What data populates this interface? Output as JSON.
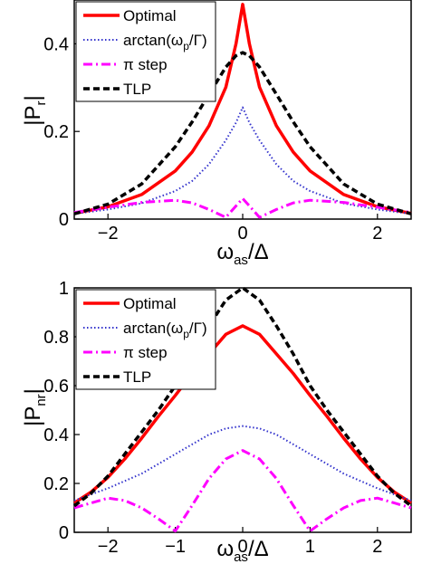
{
  "legend_labels": {
    "optimal": "Optimal",
    "arctan": "arctan(ωp/Γ)",
    "pistep": "π step",
    "tlp": "TLP"
  },
  "chart_data": [
    {
      "type": "line",
      "xlabel": "ωas/Δ",
      "ylabel": "|Pr|",
      "xlim": [
        -2.5,
        2.5
      ],
      "ylim": [
        0,
        0.5
      ],
      "xticks": [
        "-2",
        "0",
        "2"
      ],
      "yticks": [
        "0",
        "0.2",
        "0.4"
      ],
      "grid": false,
      "legend_position": "top-left",
      "x": [
        -2.5,
        -2.0,
        -1.5,
        -1.0,
        -0.75,
        -0.5,
        -0.25,
        -0.1,
        0.0,
        0.1,
        0.25,
        0.5,
        0.75,
        1.0,
        1.5,
        2.0,
        2.5
      ],
      "series": [
        {
          "name": "Optimal",
          "color": "#ff0000",
          "style": "solid",
          "values": [
            0.013,
            0.028,
            0.056,
            0.11,
            0.153,
            0.213,
            0.301,
            0.4,
            0.49,
            0.4,
            0.301,
            0.213,
            0.153,
            0.11,
            0.056,
            0.028,
            0.013
          ]
        },
        {
          "name": "arctan(ωp/Γ)",
          "color": "#3333cc",
          "style": "dotted",
          "values": [
            0.012,
            0.022,
            0.036,
            0.064,
            0.087,
            0.125,
            0.18,
            0.22,
            0.255,
            0.22,
            0.18,
            0.125,
            0.087,
            0.064,
            0.036,
            0.022,
            0.012
          ]
        },
        {
          "name": "π step",
          "color": "#ff00ff",
          "style": "dashdot",
          "values": [
            0.015,
            0.027,
            0.038,
            0.043,
            0.037,
            0.022,
            0.004,
            0.03,
            0.047,
            0.03,
            0.004,
            0.022,
            0.037,
            0.043,
            0.038,
            0.027,
            0.015
          ]
        },
        {
          "name": "TLP",
          "color": "#000000",
          "style": "dashed",
          "values": [
            0.012,
            0.034,
            0.08,
            0.165,
            0.222,
            0.285,
            0.347,
            0.373,
            0.38,
            0.373,
            0.347,
            0.285,
            0.222,
            0.165,
            0.08,
            0.034,
            0.012
          ]
        }
      ]
    },
    {
      "type": "line",
      "xlabel": "ωas/Δ",
      "ylabel": "|Pnr|",
      "xlim": [
        -2.5,
        2.5
      ],
      "ylim": [
        0,
        1
      ],
      "xticks": [
        "-2",
        "-1",
        "0",
        "1",
        "2"
      ],
      "yticks": [
        "0",
        "0.2",
        "0.4",
        "0.6",
        "0.8",
        "1"
      ],
      "grid": false,
      "legend_position": "top-left",
      "x": [
        -2.5,
        -2.25,
        -2.0,
        -1.75,
        -1.5,
        -1.25,
        -1.0,
        -0.75,
        -0.5,
        -0.25,
        0.0,
        0.25,
        0.5,
        0.75,
        1.0,
        1.25,
        1.5,
        1.75,
        2.0,
        2.25,
        2.5
      ],
      "series": [
        {
          "name": "Optimal",
          "color": "#ff0000",
          "style": "solid",
          "values": [
            0.12,
            0.165,
            0.225,
            0.3,
            0.385,
            0.475,
            0.56,
            0.65,
            0.73,
            0.81,
            0.845,
            0.81,
            0.73,
            0.65,
            0.56,
            0.475,
            0.385,
            0.3,
            0.225,
            0.165,
            0.12
          ]
        },
        {
          "name": "arctan(ωp/Γ)",
          "color": "#3333cc",
          "style": "dotted",
          "values": [
            0.13,
            0.155,
            0.18,
            0.21,
            0.24,
            0.28,
            0.32,
            0.36,
            0.4,
            0.425,
            0.435,
            0.425,
            0.4,
            0.36,
            0.32,
            0.28,
            0.24,
            0.21,
            0.18,
            0.155,
            0.13
          ]
        },
        {
          "name": "π step",
          "color": "#ff00ff",
          "style": "dashdot",
          "values": [
            0.1,
            0.12,
            0.14,
            0.13,
            0.1,
            0.055,
            0.005,
            0.11,
            0.22,
            0.3,
            0.335,
            0.3,
            0.22,
            0.11,
            0.005,
            0.055,
            0.1,
            0.13,
            0.14,
            0.12,
            0.1
          ]
        },
        {
          "name": "TLP",
          "color": "#000000",
          "style": "dashed",
          "values": [
            0.108,
            0.16,
            0.23,
            0.32,
            0.41,
            0.5,
            0.6,
            0.73,
            0.845,
            0.95,
            1.0,
            0.95,
            0.845,
            0.73,
            0.6,
            0.5,
            0.41,
            0.32,
            0.23,
            0.16,
            0.108
          ]
        }
      ]
    }
  ]
}
